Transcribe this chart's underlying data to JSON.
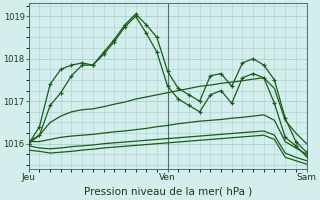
{
  "background_color": "#d4eeed",
  "grid_color": "#a8cece",
  "line_color": "#1a5c1a",
  "title": "Pression niveau de la mer( hPa )",
  "x_ticks": [
    0,
    13,
    26
  ],
  "x_tick_labels": [
    "Jeu",
    "Ven",
    "Sam"
  ],
  "ylim": [
    1015.4,
    1019.3
  ],
  "yticks": [
    1016,
    1017,
    1018,
    1019
  ],
  "series": [
    [
      1016.0,
      1016.4,
      1017.4,
      1017.75,
      1017.85,
      1017.9,
      1017.85,
      1018.15,
      1018.45,
      1018.8,
      1019.05,
      1018.8,
      1018.5,
      1017.7,
      1017.3,
      1017.15,
      1017.0,
      1017.6,
      1017.65,
      1017.35,
      1017.9,
      1018.0,
      1017.85,
      1017.5,
      1016.6,
      1016.05,
      1015.8
    ],
    [
      1016.0,
      1016.2,
      1016.9,
      1017.2,
      1017.6,
      1017.85,
      1017.85,
      1018.1,
      1018.4,
      1018.75,
      1019.0,
      1018.6,
      1018.15,
      1017.35,
      1017.05,
      1016.9,
      1016.75,
      1017.15,
      1017.25,
      1016.95,
      1017.55,
      1017.65,
      1017.55,
      1016.95,
      1016.15,
      1015.95,
      1015.7
    ],
    [
      1016.05,
      1016.2,
      1016.5,
      1016.65,
      1016.75,
      1016.8,
      1016.82,
      1016.87,
      1016.93,
      1016.98,
      1017.05,
      1017.1,
      1017.15,
      1017.2,
      1017.25,
      1017.3,
      1017.35,
      1017.38,
      1017.42,
      1017.45,
      1017.48,
      1017.52,
      1017.55,
      1017.3,
      1016.55,
      1016.25,
      1016.0
    ],
    [
      1016.05,
      1016.05,
      1016.1,
      1016.15,
      1016.18,
      1016.2,
      1016.22,
      1016.25,
      1016.28,
      1016.3,
      1016.33,
      1016.36,
      1016.4,
      1016.43,
      1016.47,
      1016.5,
      1016.53,
      1016.55,
      1016.57,
      1016.6,
      1016.62,
      1016.65,
      1016.68,
      1016.55,
      1016.05,
      1015.9,
      1015.75
    ],
    [
      1015.95,
      1015.9,
      1015.88,
      1015.9,
      1015.93,
      1015.95,
      1015.97,
      1016.0,
      1016.02,
      1016.04,
      1016.06,
      1016.08,
      1016.1,
      1016.12,
      1016.14,
      1016.16,
      1016.18,
      1016.2,
      1016.22,
      1016.24,
      1016.26,
      1016.28,
      1016.3,
      1016.2,
      1015.78,
      1015.68,
      1015.6
    ],
    [
      1015.85,
      1015.82,
      1015.78,
      1015.8,
      1015.82,
      1015.85,
      1015.87,
      1015.9,
      1015.92,
      1015.94,
      1015.96,
      1015.98,
      1016.0,
      1016.02,
      1016.04,
      1016.06,
      1016.08,
      1016.1,
      1016.12,
      1016.14,
      1016.16,
      1016.18,
      1016.2,
      1016.1,
      1015.68,
      1015.6,
      1015.52
    ]
  ],
  "marker_series": [
    0,
    1
  ],
  "xlim": [
    0,
    26
  ],
  "ven_x": 13,
  "sam_x": 26,
  "jeu_x": 0
}
